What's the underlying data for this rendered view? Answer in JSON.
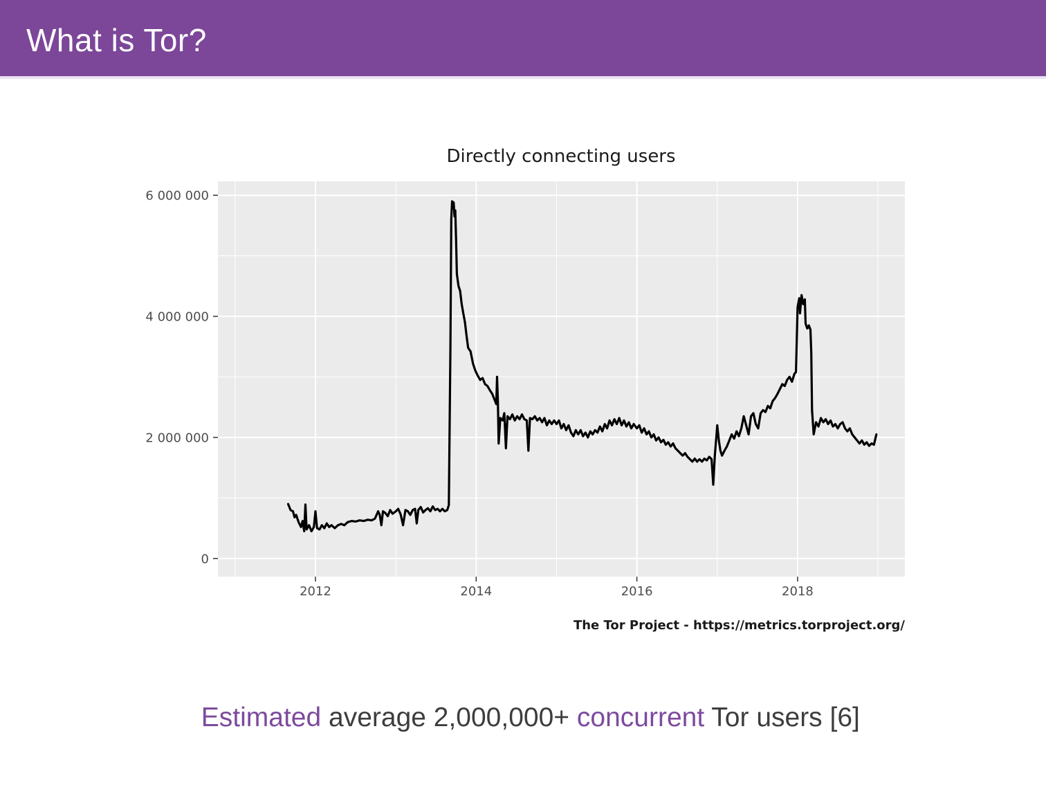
{
  "slide": {
    "title": "What is Tor?",
    "caption": {
      "seg1": "Estimated",
      "seg2": " average 2,000,000+ ",
      "seg3": "concurrent",
      "seg4": " Tor users [6]"
    },
    "colors": {
      "header_bg": "#7C4699",
      "accent": "#7D4A9E",
      "caption_text": "#3D3D3D",
      "panel_bg": "#EBEBEB",
      "line_color": "#000000",
      "tick_label_color": "#4D4D4D"
    }
  },
  "chart_data": {
    "type": "line",
    "title": "Directly connecting users",
    "source": "The Tor Project - https://metrics.torproject.org/",
    "xlabel": "",
    "ylabel": "",
    "grid": true,
    "legend": "none",
    "xlim": [
      2010.786,
      2019.335
    ],
    "ylim": [
      -300000,
      6230000
    ],
    "x_ticks": [
      {
        "value": 2012,
        "label": "2012"
      },
      {
        "value": 2014,
        "label": "2014"
      },
      {
        "value": 2016,
        "label": "2016"
      },
      {
        "value": 2018,
        "label": "2018"
      }
    ],
    "x_minor": [
      2011,
      2013,
      2015,
      2017,
      2019
    ],
    "y_ticks": [
      {
        "value": 0,
        "label": "0"
      },
      {
        "value": 2000000,
        "label": "2 000 000"
      },
      {
        "value": 4000000,
        "label": "4 000 000"
      },
      {
        "value": 6000000,
        "label": "6 000 000"
      }
    ],
    "y_minor": [
      1000000,
      3000000,
      5000000
    ],
    "series": [
      {
        "name": "Directly connecting users",
        "units": "users",
        "points": [
          [
            2011.66,
            900000
          ],
          [
            2011.69,
            800000
          ],
          [
            2011.72,
            780000
          ],
          [
            2011.74,
            680000
          ],
          [
            2011.76,
            720000
          ],
          [
            2011.79,
            600000
          ],
          [
            2011.82,
            520000
          ],
          [
            2011.84,
            620000
          ],
          [
            2011.86,
            450000
          ],
          [
            2011.875,
            890000
          ],
          [
            2011.89,
            480000
          ],
          [
            2011.92,
            550000
          ],
          [
            2011.95,
            450000
          ],
          [
            2011.98,
            520000
          ],
          [
            2012.0,
            780000
          ],
          [
            2012.02,
            500000
          ],
          [
            2012.05,
            480000
          ],
          [
            2012.08,
            550000
          ],
          [
            2012.11,
            500000
          ],
          [
            2012.14,
            580000
          ],
          [
            2012.17,
            520000
          ],
          [
            2012.2,
            550000
          ],
          [
            2012.24,
            500000
          ],
          [
            2012.28,
            550000
          ],
          [
            2012.32,
            570000
          ],
          [
            2012.36,
            550000
          ],
          [
            2012.4,
            600000
          ],
          [
            2012.45,
            620000
          ],
          [
            2012.5,
            610000
          ],
          [
            2012.55,
            630000
          ],
          [
            2012.6,
            620000
          ],
          [
            2012.65,
            640000
          ],
          [
            2012.7,
            630000
          ],
          [
            2012.74,
            660000
          ],
          [
            2012.78,
            780000
          ],
          [
            2012.8,
            720000
          ],
          [
            2012.82,
            550000
          ],
          [
            2012.84,
            780000
          ],
          [
            2012.87,
            750000
          ],
          [
            2012.9,
            700000
          ],
          [
            2012.93,
            800000
          ],
          [
            2012.96,
            740000
          ],
          [
            2013.0,
            780000
          ],
          [
            2013.03,
            820000
          ],
          [
            2013.06,
            730000
          ],
          [
            2013.09,
            550000
          ],
          [
            2013.12,
            800000
          ],
          [
            2013.15,
            780000
          ],
          [
            2013.18,
            720000
          ],
          [
            2013.21,
            800000
          ],
          [
            2013.24,
            820000
          ],
          [
            2013.26,
            580000
          ],
          [
            2013.28,
            800000
          ],
          [
            2013.31,
            850000
          ],
          [
            2013.34,
            760000
          ],
          [
            2013.37,
            800000
          ],
          [
            2013.4,
            830000
          ],
          [
            2013.43,
            780000
          ],
          [
            2013.46,
            860000
          ],
          [
            2013.49,
            800000
          ],
          [
            2013.52,
            820000
          ],
          [
            2013.55,
            780000
          ],
          [
            2013.58,
            820000
          ],
          [
            2013.61,
            780000
          ],
          [
            2013.64,
            800000
          ],
          [
            2013.66,
            880000
          ],
          [
            2013.68,
            3500000
          ],
          [
            2013.69,
            5600000
          ],
          [
            2013.7,
            5900000
          ],
          [
            2013.72,
            5880000
          ],
          [
            2013.73,
            5650000
          ],
          [
            2013.74,
            5750000
          ],
          [
            2013.75,
            5250000
          ],
          [
            2013.76,
            4700000
          ],
          [
            2013.78,
            4500000
          ],
          [
            2013.8,
            4420000
          ],
          [
            2013.82,
            4200000
          ],
          [
            2013.84,
            4050000
          ],
          [
            2013.86,
            3900000
          ],
          [
            2013.88,
            3680000
          ],
          [
            2013.9,
            3480000
          ],
          [
            2013.93,
            3420000
          ],
          [
            2013.96,
            3220000
          ],
          [
            2013.99,
            3100000
          ],
          [
            2014.02,
            3020000
          ],
          [
            2014.05,
            2950000
          ],
          [
            2014.08,
            2980000
          ],
          [
            2014.11,
            2880000
          ],
          [
            2014.14,
            2850000
          ],
          [
            2014.17,
            2780000
          ],
          [
            2014.2,
            2720000
          ],
          [
            2014.23,
            2620000
          ],
          [
            2014.25,
            2550000
          ],
          [
            2014.26,
            3000000
          ],
          [
            2014.27,
            2600000
          ],
          [
            2014.28,
            1900000
          ],
          [
            2014.3,
            2320000
          ],
          [
            2014.33,
            2280000
          ],
          [
            2014.35,
            2400000
          ],
          [
            2014.37,
            1820000
          ],
          [
            2014.39,
            2350000
          ],
          [
            2014.42,
            2300000
          ],
          [
            2014.45,
            2380000
          ],
          [
            2014.48,
            2280000
          ],
          [
            2014.51,
            2350000
          ],
          [
            2014.54,
            2300000
          ],
          [
            2014.57,
            2380000
          ],
          [
            2014.6,
            2300000
          ],
          [
            2014.63,
            2280000
          ],
          [
            2014.65,
            1780000
          ],
          [
            2014.67,
            2320000
          ],
          [
            2014.7,
            2300000
          ],
          [
            2014.73,
            2350000
          ],
          [
            2014.76,
            2280000
          ],
          [
            2014.79,
            2320000
          ],
          [
            2014.82,
            2250000
          ],
          [
            2014.85,
            2320000
          ],
          [
            2014.88,
            2200000
          ],
          [
            2014.91,
            2280000
          ],
          [
            2014.94,
            2220000
          ],
          [
            2014.97,
            2280000
          ],
          [
            2015.0,
            2220000
          ],
          [
            2015.03,
            2280000
          ],
          [
            2015.06,
            2150000
          ],
          [
            2015.09,
            2220000
          ],
          [
            2015.12,
            2120000
          ],
          [
            2015.15,
            2200000
          ],
          [
            2015.18,
            2080000
          ],
          [
            2015.21,
            2020000
          ],
          [
            2015.24,
            2120000
          ],
          [
            2015.27,
            2050000
          ],
          [
            2015.3,
            2120000
          ],
          [
            2015.33,
            2020000
          ],
          [
            2015.36,
            2080000
          ],
          [
            2015.39,
            2000000
          ],
          [
            2015.42,
            2100000
          ],
          [
            2015.45,
            2050000
          ],
          [
            2015.48,
            2120000
          ],
          [
            2015.51,
            2080000
          ],
          [
            2015.54,
            2180000
          ],
          [
            2015.57,
            2100000
          ],
          [
            2015.6,
            2220000
          ],
          [
            2015.63,
            2150000
          ],
          [
            2015.66,
            2280000
          ],
          [
            2015.69,
            2200000
          ],
          [
            2015.72,
            2300000
          ],
          [
            2015.75,
            2220000
          ],
          [
            2015.78,
            2320000
          ],
          [
            2015.81,
            2200000
          ],
          [
            2015.84,
            2280000
          ],
          [
            2015.87,
            2180000
          ],
          [
            2015.9,
            2250000
          ],
          [
            2015.93,
            2150000
          ],
          [
            2015.96,
            2220000
          ],
          [
            2016.0,
            2150000
          ],
          [
            2016.03,
            2200000
          ],
          [
            2016.06,
            2080000
          ],
          [
            2016.09,
            2150000
          ],
          [
            2016.12,
            2050000
          ],
          [
            2016.15,
            2100000
          ],
          [
            2016.18,
            2000000
          ],
          [
            2016.21,
            2050000
          ],
          [
            2016.24,
            1950000
          ],
          [
            2016.27,
            2000000
          ],
          [
            2016.3,
            1920000
          ],
          [
            2016.33,
            1960000
          ],
          [
            2016.36,
            1880000
          ],
          [
            2016.39,
            1920000
          ],
          [
            2016.42,
            1850000
          ],
          [
            2016.45,
            1900000
          ],
          [
            2016.48,
            1820000
          ],
          [
            2016.51,
            1780000
          ],
          [
            2016.54,
            1740000
          ],
          [
            2016.57,
            1700000
          ],
          [
            2016.6,
            1740000
          ],
          [
            2016.63,
            1680000
          ],
          [
            2016.66,
            1640000
          ],
          [
            2016.69,
            1600000
          ],
          [
            2016.72,
            1650000
          ],
          [
            2016.75,
            1600000
          ],
          [
            2016.78,
            1640000
          ],
          [
            2016.81,
            1600000
          ],
          [
            2016.84,
            1650000
          ],
          [
            2016.87,
            1620000
          ],
          [
            2016.9,
            1680000
          ],
          [
            2016.93,
            1640000
          ],
          [
            2016.95,
            1220000
          ],
          [
            2016.97,
            1700000
          ],
          [
            2017.0,
            2200000
          ],
          [
            2017.02,
            1950000
          ],
          [
            2017.04,
            1780000
          ],
          [
            2017.06,
            1700000
          ],
          [
            2017.09,
            1780000
          ],
          [
            2017.12,
            1850000
          ],
          [
            2017.15,
            1950000
          ],
          [
            2017.18,
            2050000
          ],
          [
            2017.21,
            1980000
          ],
          [
            2017.24,
            2100000
          ],
          [
            2017.27,
            2020000
          ],
          [
            2017.3,
            2150000
          ],
          [
            2017.33,
            2350000
          ],
          [
            2017.36,
            2200000
          ],
          [
            2017.39,
            2050000
          ],
          [
            2017.42,
            2350000
          ],
          [
            2017.45,
            2400000
          ],
          [
            2017.48,
            2220000
          ],
          [
            2017.51,
            2150000
          ],
          [
            2017.54,
            2400000
          ],
          [
            2017.57,
            2450000
          ],
          [
            2017.6,
            2420000
          ],
          [
            2017.63,
            2520000
          ],
          [
            2017.66,
            2480000
          ],
          [
            2017.69,
            2600000
          ],
          [
            2017.72,
            2650000
          ],
          [
            2017.75,
            2720000
          ],
          [
            2017.78,
            2800000
          ],
          [
            2017.81,
            2880000
          ],
          [
            2017.84,
            2850000
          ],
          [
            2017.87,
            2950000
          ],
          [
            2017.9,
            3000000
          ],
          [
            2017.93,
            2920000
          ],
          [
            2017.96,
            3050000
          ],
          [
            2017.98,
            3080000
          ],
          [
            2018.0,
            4150000
          ],
          [
            2018.02,
            4300000
          ],
          [
            2018.03,
            4050000
          ],
          [
            2018.05,
            4350000
          ],
          [
            2018.07,
            4200000
          ],
          [
            2018.09,
            4280000
          ],
          [
            2018.1,
            3880000
          ],
          [
            2018.12,
            3800000
          ],
          [
            2018.14,
            3850000
          ],
          [
            2018.16,
            3780000
          ],
          [
            2018.17,
            3400000
          ],
          [
            2018.18,
            2450000
          ],
          [
            2018.2,
            2050000
          ],
          [
            2018.23,
            2250000
          ],
          [
            2018.26,
            2180000
          ],
          [
            2018.29,
            2320000
          ],
          [
            2018.32,
            2250000
          ],
          [
            2018.35,
            2300000
          ],
          [
            2018.38,
            2220000
          ],
          [
            2018.41,
            2280000
          ],
          [
            2018.44,
            2180000
          ],
          [
            2018.47,
            2220000
          ],
          [
            2018.5,
            2150000
          ],
          [
            2018.53,
            2220000
          ],
          [
            2018.56,
            2250000
          ],
          [
            2018.59,
            2150000
          ],
          [
            2018.62,
            2100000
          ],
          [
            2018.65,
            2150000
          ],
          [
            2018.68,
            2050000
          ],
          [
            2018.71,
            2000000
          ],
          [
            2018.74,
            1950000
          ],
          [
            2018.77,
            1900000
          ],
          [
            2018.8,
            1950000
          ],
          [
            2018.83,
            1880000
          ],
          [
            2018.86,
            1920000
          ],
          [
            2018.89,
            1860000
          ],
          [
            2018.92,
            1900000
          ],
          [
            2018.95,
            1880000
          ],
          [
            2018.98,
            2050000
          ]
        ]
      }
    ]
  }
}
